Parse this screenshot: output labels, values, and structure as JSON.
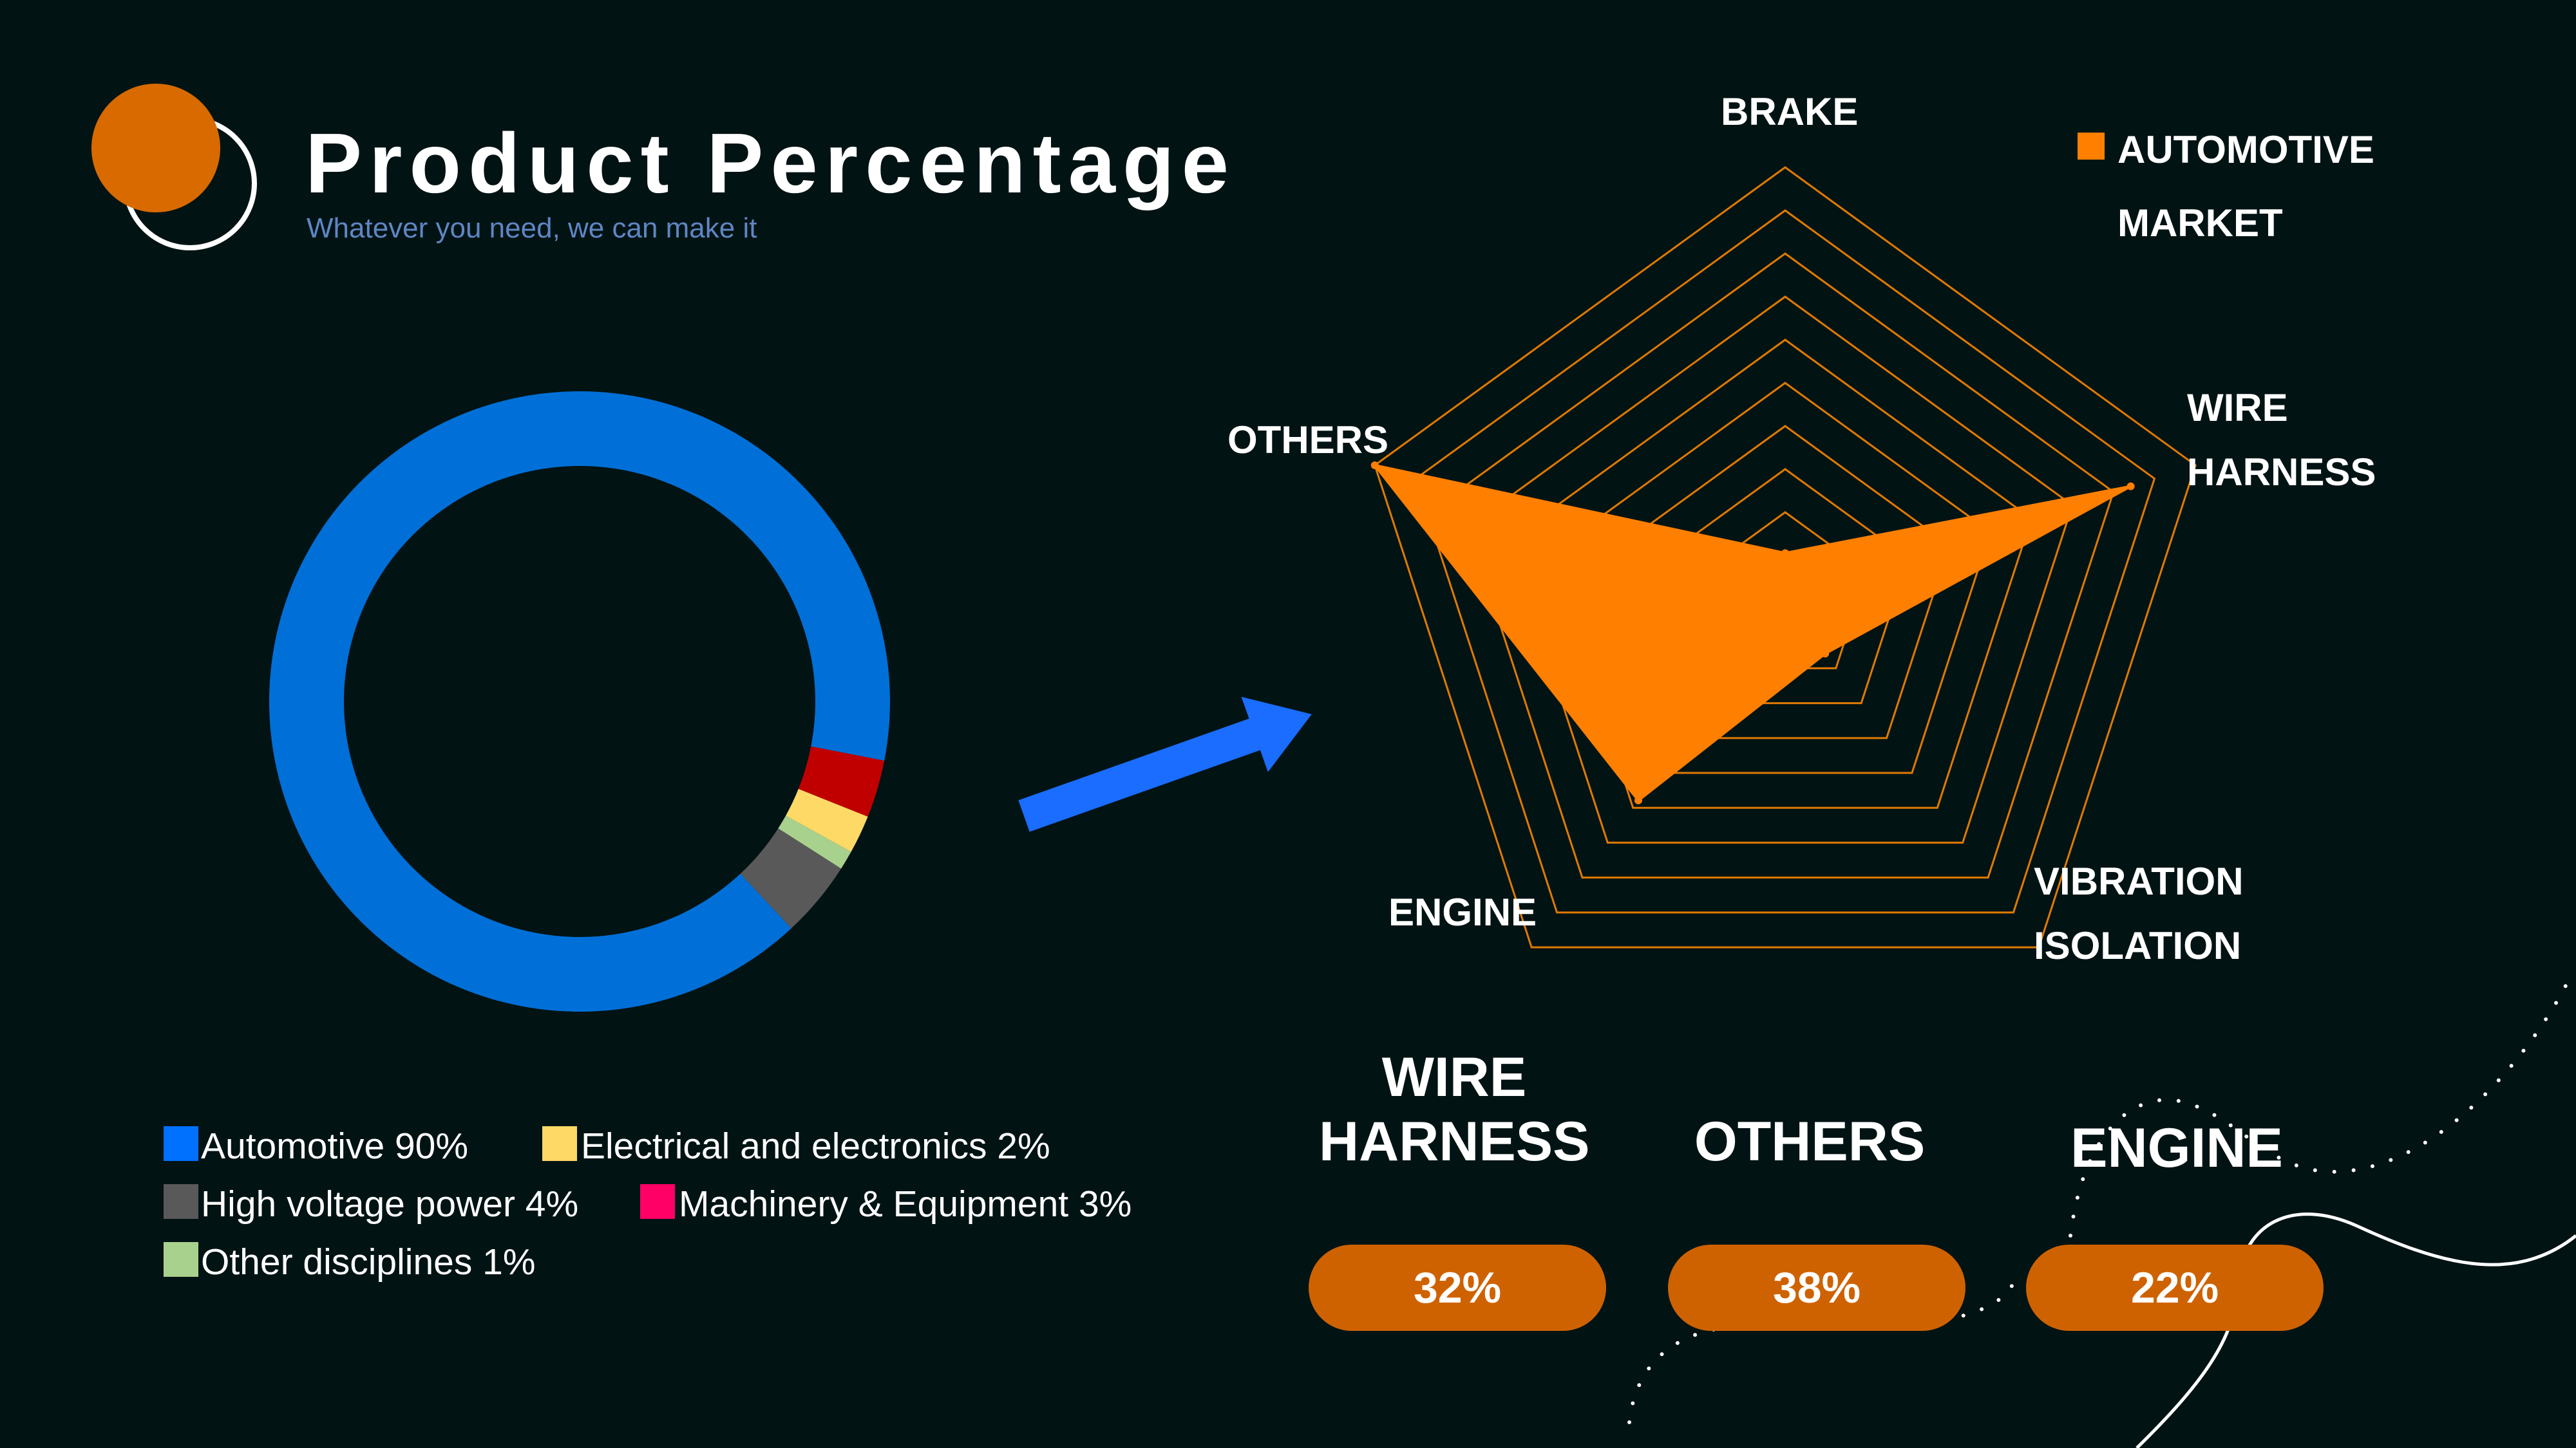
{
  "header": {
    "title": "Product Percentage",
    "subtitle": "Whatever you need, we can make it"
  },
  "chart_data": [
    {
      "type": "pie",
      "variant": "donut",
      "slices": [
        {
          "label": "Automotive",
          "value": 90,
          "color": "#0070d8"
        },
        {
          "label": "Machinery & Equipment",
          "value": 3,
          "color": "#c00000"
        },
        {
          "label": "Electrical and electronics",
          "value": 2,
          "color": "#ffd966"
        },
        {
          "label": "Other disciplines",
          "value": 1,
          "color": "#a9d18e"
        },
        {
          "label": "High voltage power",
          "value": 4,
          "color": "#595959"
        }
      ],
      "legend": [
        {
          "text": "Automotive 90%",
          "color": "#0070ff"
        },
        {
          "text": "Electrical and electronics 2%",
          "color": "#ffd966"
        },
        {
          "text": "High voltage power 4%",
          "color": "#595959"
        },
        {
          "text": "Machinery & Equipment 3%",
          "color": "#ff0066"
        },
        {
          "text": "Other disciplines 1%",
          "color": "#a9d18e"
        }
      ]
    },
    {
      "type": "radar",
      "axes": [
        "BRAKE",
        "WIRE HARNESS",
        "VIBRATION ISOLATION",
        "ENGINE",
        "OTHERS"
      ],
      "axis_labels": [
        [
          "BRAKE"
        ],
        [
          "WIRE",
          "HARNESS"
        ],
        [
          "VIBRATION",
          "ISOLATION"
        ],
        [
          "ENGINE"
        ],
        [
          "OTHERS"
        ]
      ],
      "series": [
        {
          "name": "AUTOMOTIVE MARKET",
          "values": [
            4,
            32,
            6,
            22,
            38
          ],
          "color": "#ff7f00"
        }
      ],
      "series_legend_lines": [
        "AUTOMOTIVE",
        "MARKET"
      ],
      "rmax": 38,
      "rings": 10,
      "grid_color": "#e07a00"
    }
  ],
  "highlights": [
    {
      "label_lines": [
        "WIRE",
        "HARNESS"
      ],
      "value": "32%"
    },
    {
      "label_lines": [
        "OTHERS"
      ],
      "value": "38%"
    },
    {
      "label_lines": [
        "ENGINE"
      ],
      "value": "22%"
    }
  ],
  "colors": {
    "background": "#021314",
    "accent_orange": "#cf6200",
    "arrow_blue": "#1a6dff"
  }
}
